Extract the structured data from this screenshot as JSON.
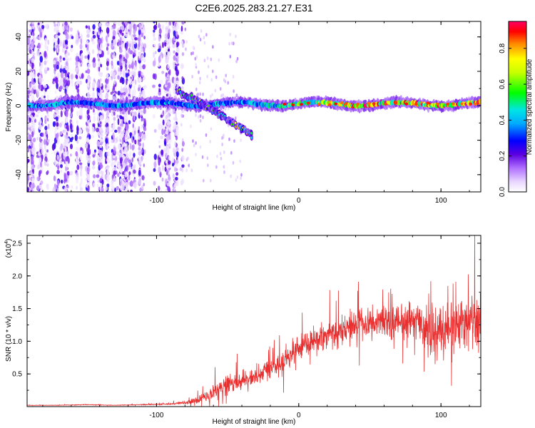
{
  "title": "C2E6.2025.283.21.27.E31",
  "colors": {
    "signal": "#e83030",
    "frame": "#000000",
    "background": "#ffffff"
  },
  "chart_data": [
    {
      "type": "heatmap",
      "name": "spectrogram",
      "xlabel": "Height of straight line (km)",
      "ylabel": "Frequency (Hz)",
      "xlim": [
        -191,
        128
      ],
      "ylim": [
        -50,
        49
      ],
      "x_ticks": [
        -100,
        0,
        100
      ],
      "y_ticks": [
        40,
        20,
        0,
        -20,
        -40
      ],
      "colorbar": {
        "label": "Normalized spectral amplitude",
        "range": [
          0,
          0.95
        ],
        "ticks": [
          "0.0",
          "0.2",
          "0.4",
          "0.6",
          "0.8"
        ],
        "tick_values": [
          0,
          0.2,
          0.4,
          0.6,
          0.8
        ]
      },
      "features": [
        {
          "name": "main-band",
          "x_range": [
            -191,
            128
          ],
          "center_frequency_hz": 1,
          "peak_amplitude": 0.95
        },
        {
          "name": "descending-branch",
          "x_from": -85,
          "x_to": -33,
          "frequency_from_hz": 8,
          "frequency_to_hz": -17,
          "peak_amplitude": 0.55
        },
        {
          "name": "scatter-region",
          "x_range": [
            -191,
            -80
          ],
          "frequency_range_hz": [
            -50,
            49
          ],
          "peak_amplitude": 0.25
        }
      ]
    },
    {
      "type": "line",
      "name": "snr",
      "xlabel": "Height of straight line (km)",
      "ylabel": "SNR (10 * v/v)",
      "scale_label": "(x10",
      "scale_exponent": "4",
      "xlim": [
        -191,
        128
      ],
      "ylim": [
        0,
        2.62
      ],
      "x_ticks": [
        -100,
        0,
        100
      ],
      "y_ticks": [
        "0.5",
        "1.0",
        "1.5",
        "2.0",
        "2.5"
      ],
      "y_tick_values": [
        0.5,
        1.0,
        1.5,
        2.0,
        2.5
      ],
      "series": [
        {
          "name": "SNR",
          "x": [
            -191,
            -170,
            -150,
            -130,
            -110,
            -90,
            -80,
            -70,
            -65,
            -60,
            -55,
            -50,
            -45,
            -40,
            -35,
            -30,
            -25,
            -20,
            -15,
            -10,
            -5,
            0,
            5,
            10,
            15,
            20,
            25,
            30,
            35,
            40,
            45,
            50,
            55,
            60,
            65,
            70,
            75,
            80,
            85,
            90,
            95,
            100,
            105,
            110,
            115,
            120,
            125,
            128
          ],
          "values": [
            0.02,
            0.02,
            0.03,
            0.02,
            0.03,
            0.04,
            0.06,
            0.1,
            0.16,
            0.22,
            0.3,
            0.33,
            0.36,
            0.4,
            0.42,
            0.45,
            0.52,
            0.58,
            0.65,
            0.72,
            0.8,
            0.88,
            0.95,
            1.0,
            1.05,
            1.1,
            1.13,
            1.18,
            1.22,
            1.25,
            1.26,
            1.28,
            1.3,
            1.3,
            1.29,
            1.3,
            1.28,
            1.27,
            1.25,
            1.2,
            1.18,
            1.15,
            1.2,
            1.25,
            1.28,
            1.3,
            1.32,
            1.35
          ],
          "noise_amplitude": [
            0.005,
            0.005,
            0.008,
            0.006,
            0.01,
            0.02,
            0.05,
            0.1,
            0.16,
            0.2,
            0.24,
            0.25,
            0.25,
            0.25,
            0.26,
            0.27,
            0.27,
            0.28,
            0.28,
            0.3,
            0.3,
            0.32,
            0.33,
            0.35,
            0.36,
            0.37,
            0.38,
            0.38,
            0.38,
            0.38,
            0.38,
            0.38,
            0.4,
            0.42,
            0.44,
            0.46,
            0.48,
            0.5,
            0.55,
            0.6,
            0.62,
            0.7,
            0.62,
            0.6,
            0.62,
            0.68,
            0.75,
            0.8
          ]
        }
      ]
    }
  ]
}
